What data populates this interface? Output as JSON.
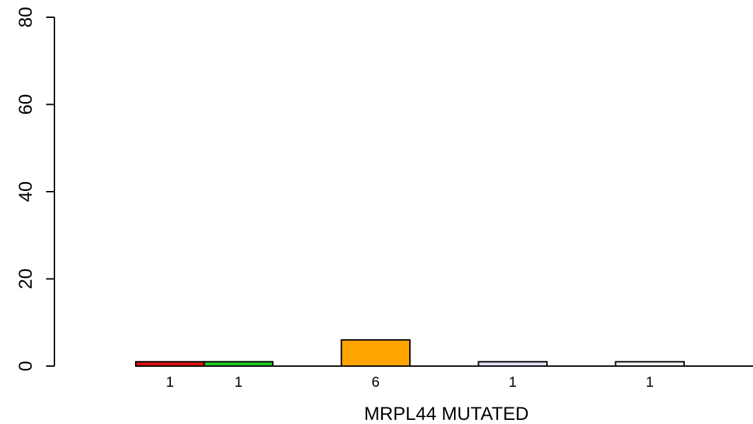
{
  "chart_data": {
    "type": "bar",
    "xlabel": "MRPL44 MUTATED",
    "ylabel": "",
    "ylim": [
      0,
      80
    ],
    "yticks": [
      0,
      20,
      40,
      60,
      80
    ],
    "grid": false,
    "series": [
      {
        "values": [
          1,
          1,
          0,
          6,
          0,
          1,
          0,
          1
        ],
        "labels": [
          "1",
          "1",
          "",
          "6",
          "",
          "1",
          "",
          "1"
        ],
        "colors": [
          "#dd1111",
          "#22cc22",
          "#ffffff",
          "#ffa500",
          "#ffffff",
          "#dcdcf2",
          "#ffffff",
          "#f0f0f0"
        ]
      }
    ]
  }
}
